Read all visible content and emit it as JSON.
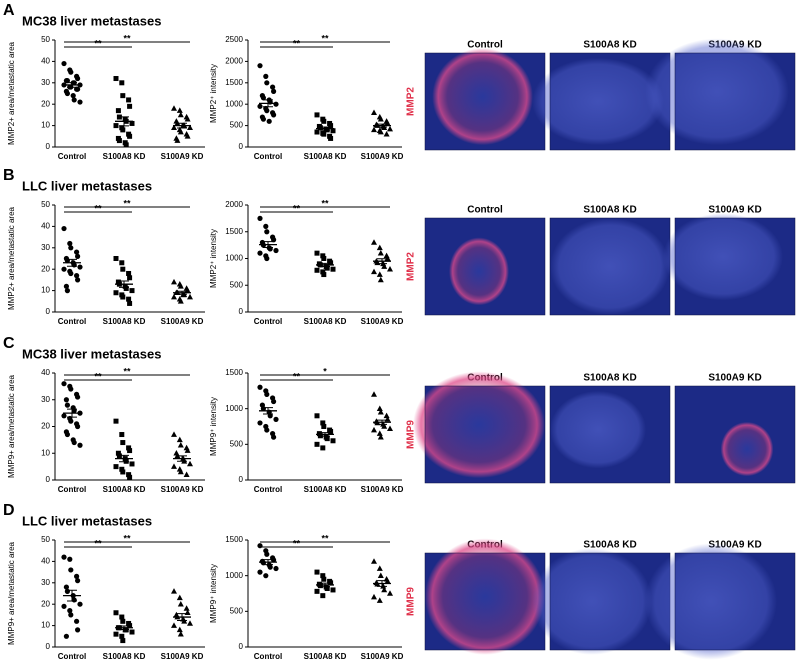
{
  "panels": [
    {
      "letter": "A",
      "title": "MC38 liver metastases",
      "stain": "MMP2",
      "image_headers": [
        "Control",
        "S100A8 KD",
        "S100A9 KD"
      ],
      "charts": [
        {
          "type": "scatter",
          "ylabel": "MMP2+ area/metastatic area",
          "categories": [
            "Control",
            "S100A8 KD",
            "S100A9 KD"
          ],
          "markers": [
            "circle",
            "square",
            "triangle"
          ],
          "ylim": [
            0,
            50
          ],
          "yticks": [
            0,
            10,
            20,
            30,
            40,
            50
          ],
          "groups": [
            {
              "values": [
                39,
                36,
                35,
                33,
                32,
                31,
                31,
                30,
                30,
                29,
                29,
                28,
                28,
                27,
                27,
                26,
                25,
                24,
                22,
                21
              ],
              "mean": 29,
              "sem": 1.1
            },
            {
              "values": [
                32,
                30,
                24,
                22,
                19,
                17,
                14,
                13,
                12,
                11,
                10,
                9,
                8,
                6,
                5,
                4,
                3,
                2,
                1
              ],
              "mean": 12,
              "sem": 2.1
            },
            {
              "values": [
                18,
                17,
                15,
                14,
                13,
                12,
                11,
                10,
                10,
                9,
                9,
                8,
                7,
                6,
                5,
                4,
                3
              ],
              "mean": 10,
              "sem": 1.1
            }
          ],
          "significance": [
            {
              "label": "**",
              "from": 0,
              "to": 1
            },
            {
              "label": "**",
              "from": 0,
              "to": 2
            }
          ]
        },
        {
          "type": "scatter",
          "ylabel": "MMP2⁺ intensity",
          "categories": [
            "Control",
            "S100A8 KD",
            "S100A9 KD"
          ],
          "markers": [
            "circle",
            "square",
            "triangle"
          ],
          "ylim": [
            0,
            2500
          ],
          "yticks": [
            0,
            500,
            1000,
            1500,
            2000,
            2500
          ],
          "groups": [
            {
              "values": [
                1900,
                1650,
                1500,
                1400,
                1300,
                1200,
                1150,
                1100,
                1050,
                1000,
                950,
                900,
                850,
                800,
                750,
                700,
                650,
                600
              ],
              "mean": 1020,
              "sem": 80
            },
            {
              "values": [
                750,
                650,
                600,
                550,
                500,
                480,
                450,
                420,
                400,
                380,
                350,
                320,
                300,
                250,
                200
              ],
              "mean": 430,
              "sem": 35
            },
            {
              "values": [
                800,
                700,
                650,
                600,
                550,
                520,
                500,
                480,
                450,
                420,
                400,
                380,
                350,
                300
              ],
              "mean": 500,
              "sem": 35
            }
          ],
          "significance": [
            {
              "label": "**",
              "from": 0,
              "to": 1
            },
            {
              "label": "**",
              "from": 0,
              "to": 2
            }
          ]
        }
      ]
    },
    {
      "letter": "B",
      "title": "LLC liver metastases",
      "stain": "MMP2",
      "image_headers": [
        "Control",
        "S100A8 KD",
        "S100A9 KD"
      ],
      "charts": [
        {
          "type": "scatter",
          "ylabel": "MMP2+ area/metastatic area",
          "categories": [
            "Control",
            "S100A8 KD",
            "S100A9 KD"
          ],
          "markers": [
            "circle",
            "square",
            "triangle"
          ],
          "ylim": [
            0,
            50
          ],
          "yticks": [
            0,
            10,
            20,
            30,
            40,
            50
          ],
          "groups": [
            {
              "values": [
                39,
                32,
                30,
                28,
                26,
                25,
                24,
                23,
                22,
                21,
                20,
                19,
                18,
                17,
                15,
                12,
                10
              ],
              "mean": 23,
              "sem": 1.6
            },
            {
              "values": [
                25,
                23,
                20,
                18,
                16,
                14,
                13,
                12,
                11,
                10,
                9,
                8,
                7,
                6,
                4
              ],
              "mean": 13,
              "sem": 1.5
            },
            {
              "values": [
                14,
                13,
                12,
                11,
                10,
                9,
                9,
                8,
                8,
                7,
                7,
                6,
                5
              ],
              "mean": 9,
              "sem": 0.7
            }
          ],
          "significance": [
            {
              "label": "**",
              "from": 0,
              "to": 1
            },
            {
              "label": "**",
              "from": 0,
              "to": 2
            }
          ]
        },
        {
          "type": "scatter",
          "ylabel": "MMP2⁺ intensity",
          "categories": [
            "Control",
            "S100A8 KD",
            "S100A9 KD"
          ],
          "markers": [
            "circle",
            "square",
            "triangle"
          ],
          "ylim": [
            0,
            2000
          ],
          "yticks": [
            0,
            500,
            1000,
            1500,
            2000
          ],
          "groups": [
            {
              "values": [
                1750,
                1600,
                1500,
                1400,
                1350,
                1300,
                1250,
                1200,
                1180,
                1150,
                1100,
                1050,
                1000
              ],
              "mean": 1260,
              "sem": 55
            },
            {
              "values": [
                1100,
                1050,
                1000,
                950,
                920,
                900,
                880,
                850,
                820,
                800,
                780,
                750,
                700
              ],
              "mean": 880,
              "sem": 30
            },
            {
              "values": [
                1300,
                1200,
                1100,
                1050,
                1000,
                950,
                920,
                900,
                850,
                800,
                750,
                700,
                600
              ],
              "mean": 950,
              "sem": 45
            }
          ],
          "significance": [
            {
              "label": "**",
              "from": 0,
              "to": 1
            },
            {
              "label": "**",
              "from": 0,
              "to": 2
            }
          ]
        }
      ]
    },
    {
      "letter": "C",
      "title": "MC38 liver metastases",
      "stain": "MMP9",
      "image_headers": [
        "Control",
        "S100A8 KD",
        "S100A9 KD"
      ],
      "charts": [
        {
          "type": "scatter",
          "ylabel": "MMP9+ area/metastatic area",
          "categories": [
            "Control",
            "S100A8 KD",
            "S100A9 KD"
          ],
          "markers": [
            "circle",
            "square",
            "triangle"
          ],
          "ylim": [
            0,
            40
          ],
          "yticks": [
            0,
            10,
            20,
            30,
            40
          ],
          "groups": [
            {
              "values": [
                36,
                35,
                34,
                32,
                31,
                30,
                28,
                27,
                26,
                25,
                24,
                23,
                22,
                21,
                20,
                18,
                17,
                15,
                14,
                13
              ],
              "mean": 25,
              "sem": 1.5
            },
            {
              "values": [
                22,
                17,
                14,
                12,
                11,
                10,
                9,
                8,
                7,
                6,
                5,
                4,
                3,
                2,
                1
              ],
              "mean": 8,
              "sem": 1.2
            },
            {
              "values": [
                17,
                15,
                13,
                12,
                11,
                10,
                9,
                8,
                7,
                6,
                5,
                4,
                3,
                2
              ],
              "mean": 8,
              "sem": 1.0
            }
          ],
          "significance": [
            {
              "label": "**",
              "from": 0,
              "to": 1
            },
            {
              "label": "**",
              "from": 0,
              "to": 2
            }
          ]
        },
        {
          "type": "scatter",
          "ylabel": "MMP9⁺ intensity",
          "categories": [
            "Control",
            "S100A8 KD",
            "S100A9 KD"
          ],
          "markers": [
            "circle",
            "square",
            "triangle"
          ],
          "ylim": [
            0,
            1500
          ],
          "yticks": [
            0,
            500,
            1000,
            1500
          ],
          "groups": [
            {
              "values": [
                1300,
                1250,
                1200,
                1150,
                1100,
                1050,
                1000,
                950,
                900,
                850,
                800,
                750,
                700,
                650,
                600
              ],
              "mean": 970,
              "sem": 45
            },
            {
              "values": [
                900,
                800,
                750,
                700,
                680,
                650,
                620,
                600,
                580,
                550,
                500,
                450
              ],
              "mean": 640,
              "sem": 25
            },
            {
              "values": [
                1200,
                1000,
                950,
                900,
                850,
                820,
                800,
                780,
                750,
                720,
                700,
                650,
                600
              ],
              "mean": 810,
              "sem": 30
            }
          ],
          "significance": [
            {
              "label": "**",
              "from": 0,
              "to": 1
            },
            {
              "label": "*",
              "from": 0,
              "to": 2
            }
          ]
        }
      ]
    },
    {
      "letter": "D",
      "title": "LLC liver metastases",
      "stain": "MMP9",
      "image_headers": [
        "Control",
        "S100A8 KD",
        "S100A9 KD"
      ],
      "charts": [
        {
          "type": "scatter",
          "ylabel": "MMP9+ area/metastatic area",
          "categories": [
            "Control",
            "S100A8 KD",
            "S100A9 KD"
          ],
          "markers": [
            "circle",
            "square",
            "triangle"
          ],
          "ylim": [
            0,
            50
          ],
          "yticks": [
            0,
            10,
            20,
            30,
            40,
            50
          ],
          "groups": [
            {
              "values": [
                42,
                41,
                36,
                33,
                31,
                28,
                26,
                24,
                22,
                20,
                19,
                17,
                15,
                12,
                8,
                5
              ],
              "mean": 24,
              "sem": 2.5
            },
            {
              "values": [
                16,
                14,
                12,
                11,
                10,
                9,
                9,
                8,
                8,
                7,
                6,
                5,
                3
              ],
              "mean": 9,
              "sem": 0.8
            },
            {
              "values": [
                26,
                23,
                20,
                18,
                16,
                15,
                14,
                13,
                12,
                11,
                10,
                8,
                6
              ],
              "mean": 14,
              "sem": 1.6
            }
          ],
          "significance": [
            {
              "label": "**",
              "from": 0,
              "to": 1
            },
            {
              "label": "**",
              "from": 0,
              "to": 2
            }
          ]
        },
        {
          "type": "scatter",
          "ylabel": "MMP9⁺ intensity",
          "categories": [
            "Control",
            "S100A8 KD",
            "S100A9 KD"
          ],
          "markers": [
            "circle",
            "square",
            "triangle"
          ],
          "ylim": [
            0,
            1500
          ],
          "yticks": [
            0,
            500,
            1000,
            1500
          ],
          "groups": [
            {
              "values": [
                1420,
                1350,
                1300,
                1250,
                1220,
                1200,
                1180,
                1150,
                1120,
                1100,
                1050,
                1000
              ],
              "mean": 1190,
              "sem": 35
            },
            {
              "values": [
                1050,
                1000,
                950,
                920,
                900,
                880,
                860,
                840,
                820,
                800,
                780,
                720
              ],
              "mean": 870,
              "sem": 25
            },
            {
              "values": [
                1200,
                1100,
                1000,
                950,
                920,
                900,
                880,
                850,
                800,
                750,
                700,
                650
              ],
              "mean": 890,
              "sem": 40
            }
          ],
          "significance": [
            {
              "label": "**",
              "from": 0,
              "to": 1
            },
            {
              "label": "**",
              "from": 0,
              "to": 2
            }
          ]
        }
      ]
    }
  ]
}
